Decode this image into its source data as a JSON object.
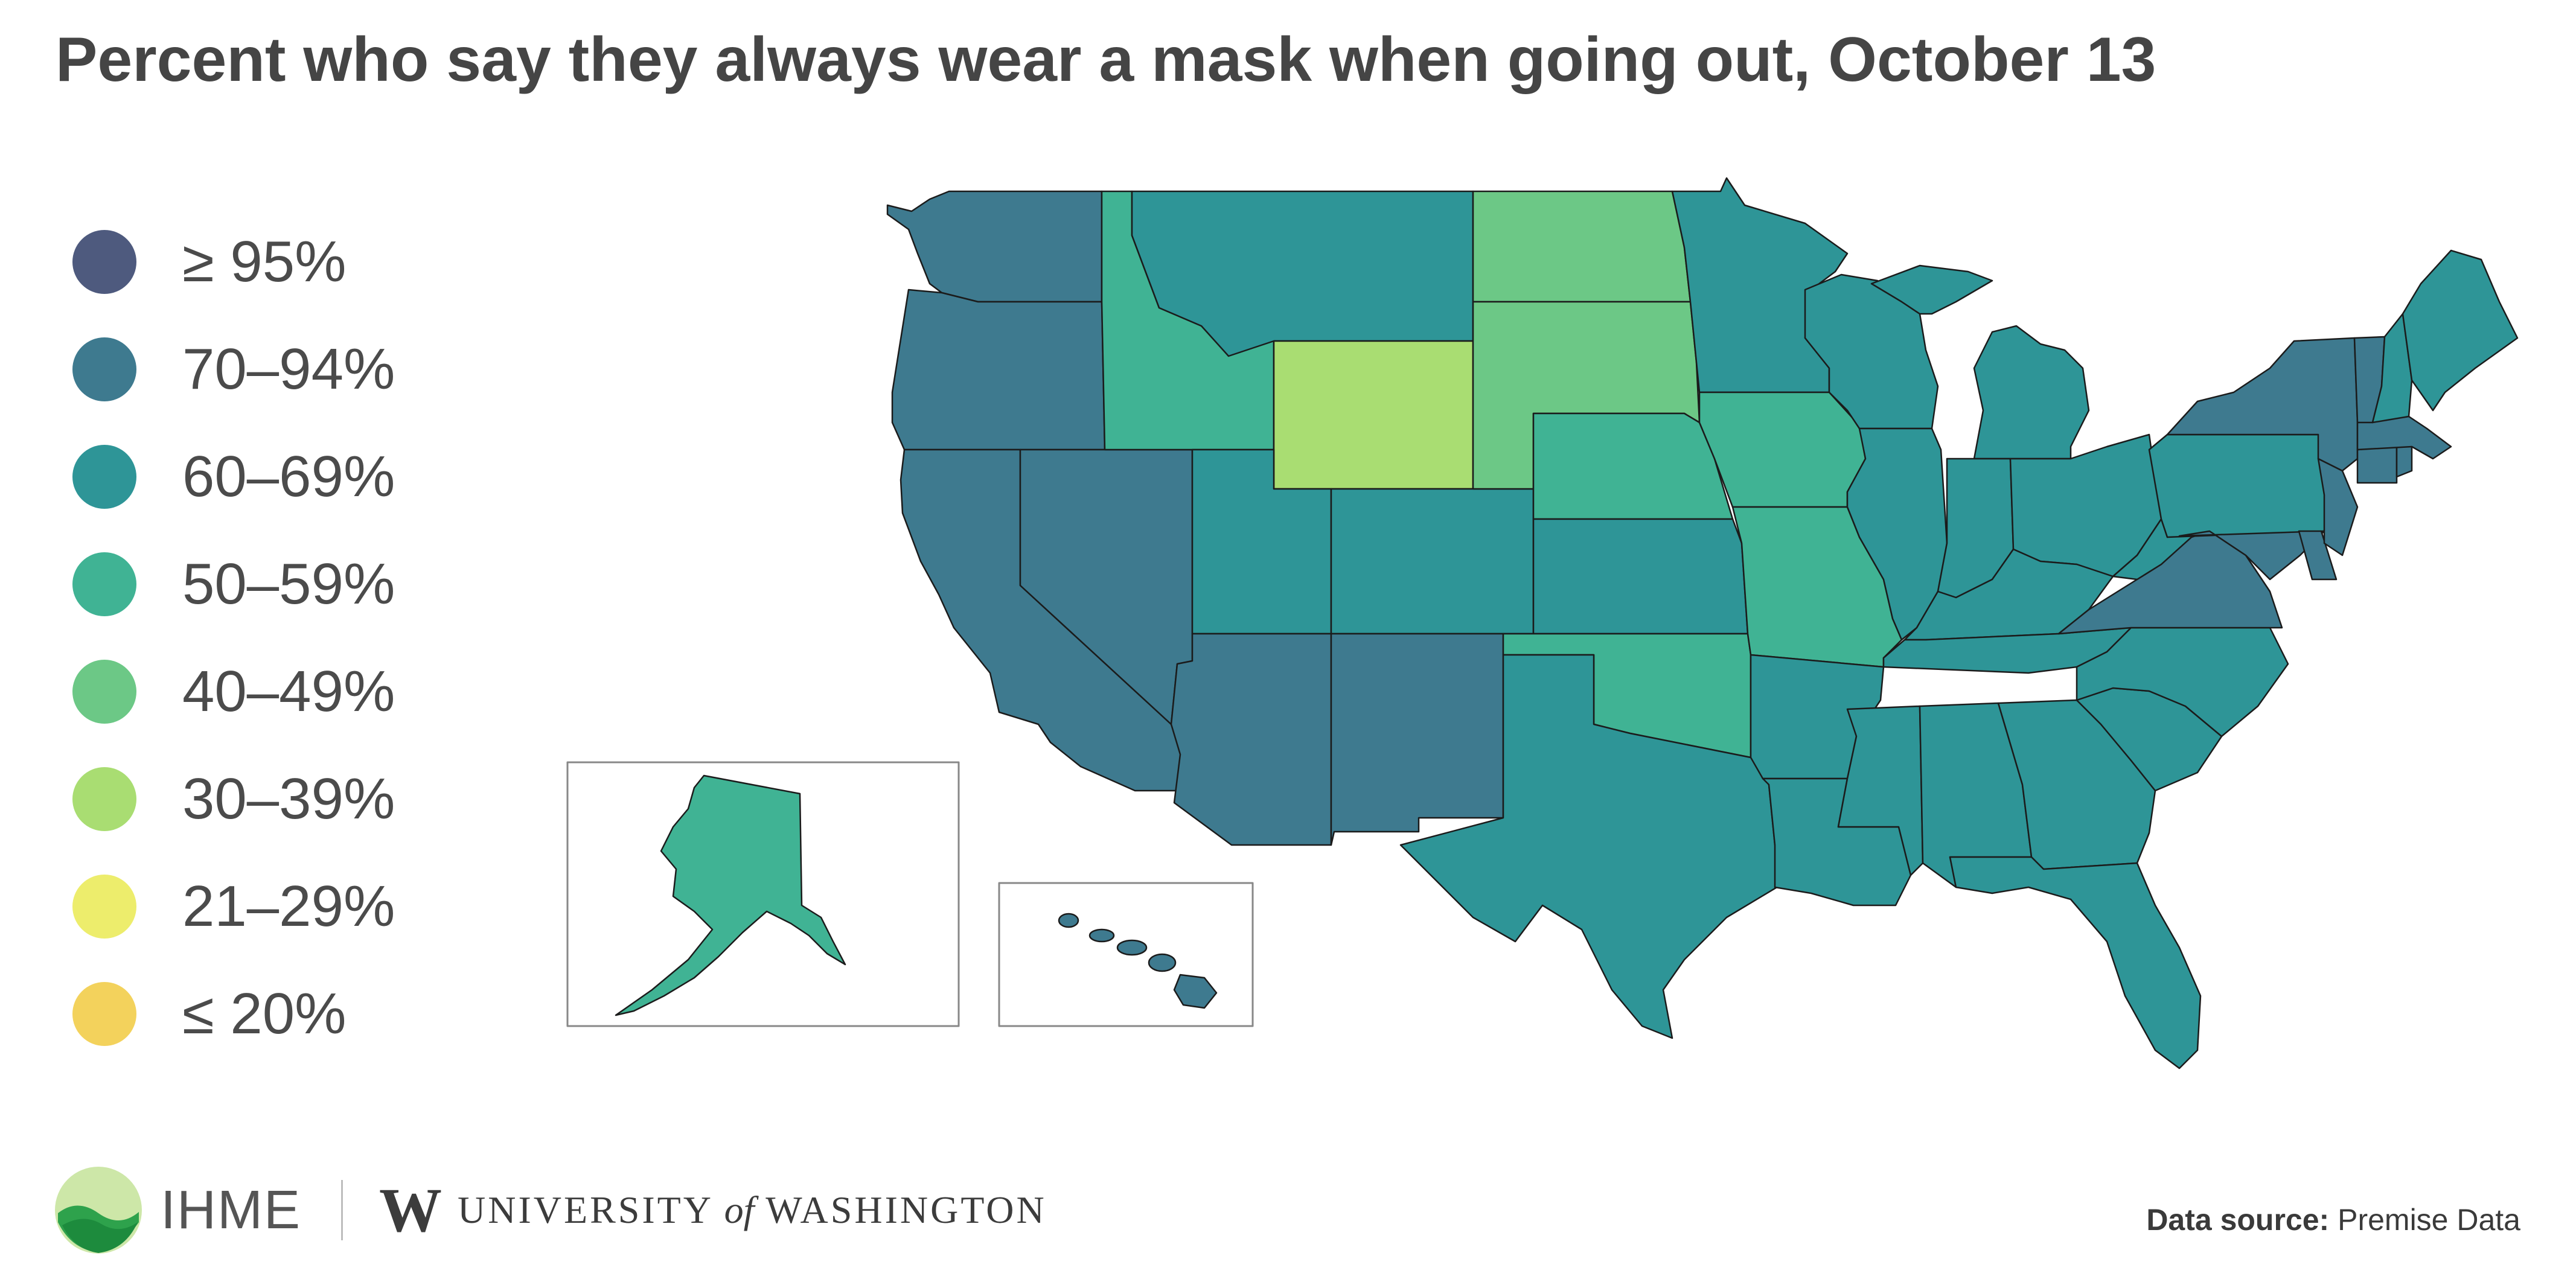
{
  "title": "Percent who say they always wear a mask when going out, October 13",
  "legend": [
    {
      "label": "≥ 95%",
      "color": "#4e5a7e"
    },
    {
      "label": "70–94%",
      "color": "#3e7a8f"
    },
    {
      "label": "60–69%",
      "color": "#2e9597"
    },
    {
      "label": "50–59%",
      "color": "#40b394"
    },
    {
      "label": "40–49%",
      "color": "#6cc886"
    },
    {
      "label": "30–39%",
      "color": "#a9dd72"
    },
    {
      "label": "21–29%",
      "color": "#eded6c"
    },
    {
      "label": "≤ 20%",
      "color": "#f3d25c"
    }
  ],
  "states": {
    "WA": "70-94%",
    "OR": "70-94%",
    "CA": "70-94%",
    "NV": "70-94%",
    "AZ": "70-94%",
    "NM": "70-94%",
    "ID": "50-59%",
    "MT": "60-69%",
    "WY": "30-39%",
    "ND": "40-49%",
    "SD": "40-49%",
    "NE": "50-59%",
    "KS": "60-69%",
    "OK": "50-59%",
    "TX": "60-69%",
    "UT": "60-69%",
    "CO": "60-69%",
    "MN": "60-69%",
    "IA": "50-59%",
    "MO": "50-59%",
    "AR": "60-69%",
    "LA": "60-69%",
    "WI": "60-69%",
    "IL": "60-69%",
    "MI": "60-69%",
    "IN": "60-69%",
    "OH": "60-69%",
    "KY": "60-69%",
    "TN": "60-69%",
    "MS": "60-69%",
    "AL": "60-69%",
    "GA": "60-69%",
    "FL": "60-69%",
    "SC": "60-69%",
    "NC": "60-69%",
    "VA": "70-94%",
    "WV": "60-69%",
    "PA": "60-69%",
    "NY": "70-94%",
    "VT": "70-94%",
    "NH": "60-69%",
    "ME": "60-69%",
    "MA": "70-94%",
    "CT": "70-94%",
    "RI": "70-94%",
    "NJ": "70-94%",
    "DE": "70-94%",
    "MD": "70-94%",
    "AK": "50-59%",
    "HI": "70-94%"
  },
  "footer": {
    "ihme": "IHME",
    "uw_w": "W",
    "uw_pre": "UNIVERSITY ",
    "uw_of": "of",
    "uw_post": " WASHINGTON",
    "source_label": "Data source:",
    "source_value": "Premise Data"
  }
}
